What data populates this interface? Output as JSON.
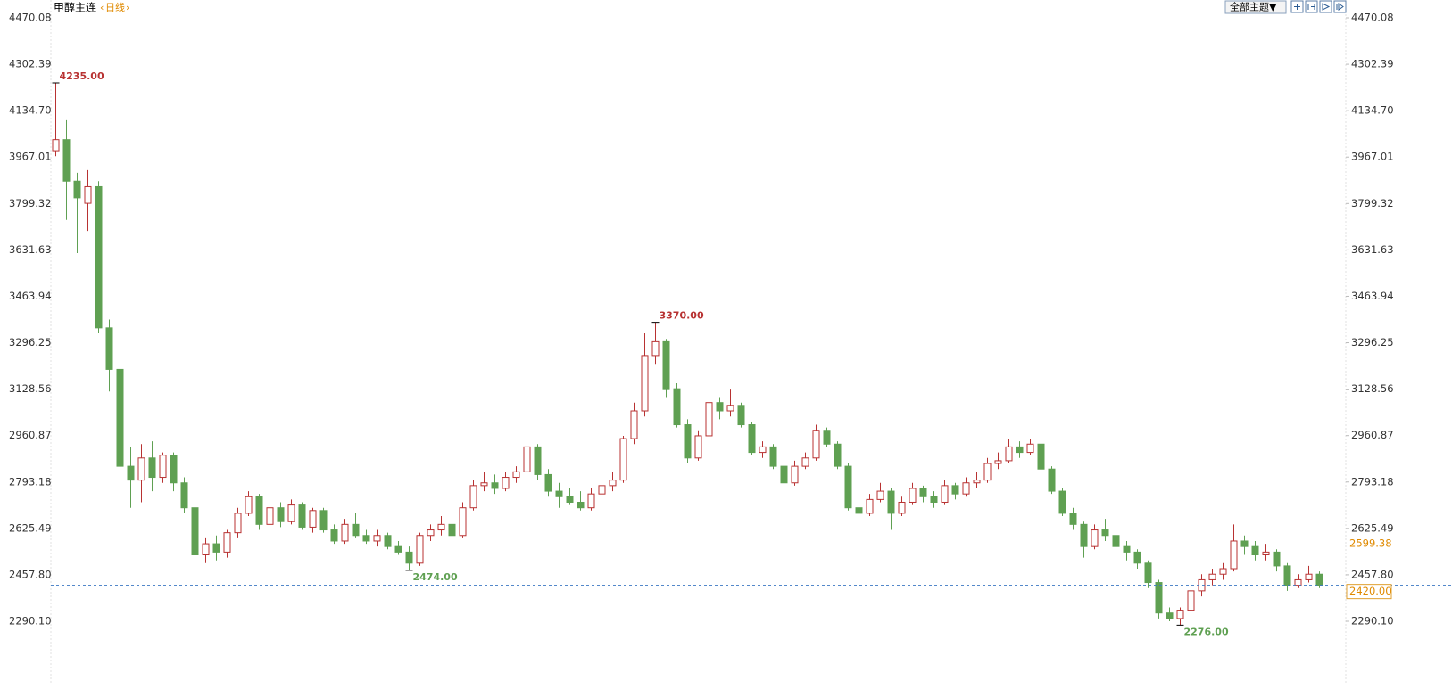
{
  "chart_data": {
    "type": "candlestick",
    "title": "甲醇主连",
    "period": "日线",
    "theme_button": "全部主题▼",
    "up_color": "#b83232",
    "down_color": "#5fa052",
    "ylim": [
      2150,
      4470.08
    ],
    "yticks": [
      4470.08,
      4302.39,
      {
        "value": 4134.7,
        "label": "4134.70"
      },
      3967.01,
      3799.32,
      3631.63,
      3463.94,
      3296.25,
      3128.56,
      2960.87,
      2793.18,
      2625.49,
      {
        "value": 2457.8,
        "label": "2457.80"
      },
      {
        "value": 2290.1,
        "label": "2290.10"
      }
    ],
    "open": [
      3990,
      4030,
      3880,
      3800,
      3860,
      3350,
      3200,
      2850,
      2800,
      2880,
      2810,
      2890,
      2790,
      2700,
      2530,
      2570,
      2540,
      2610,
      2680,
      2740,
      2640,
      2700,
      2650,
      2710,
      2630,
      2690,
      2620,
      2580,
      2640,
      2600,
      2580,
      2600,
      2560,
      2540,
      2500,
      2600,
      2620,
      2640,
      2600,
      2700,
      2780,
      2790,
      2770,
      2810,
      2830,
      2920,
      2820,
      2760,
      2740,
      2720,
      2700,
      2750,
      2780,
      2800,
      2950,
      3050,
      3250,
      3300,
      3130,
      3000,
      2880,
      2960,
      3080,
      3050,
      3070,
      3000,
      2900,
      2920,
      2850,
      2790,
      2850,
      2880,
      2980,
      2930,
      2850,
      2700,
      2680,
      2730,
      2760,
      2680,
      2720,
      2770,
      2740,
      2720,
      2780,
      2750,
      2790,
      2800,
      2860,
      2870,
      2920,
      2900,
      2930,
      2840,
      2760,
      2680,
      2640,
      2560,
      2620,
      2600,
      2560,
      2540,
      2500,
      2430,
      2320,
      2300,
      2330,
      2400,
      2440,
      2460,
      2480,
      2580,
      2560,
      2530,
      2540,
      2490,
      2420,
      2440,
      2460
    ],
    "high": [
      4235,
      4100,
      3910,
      3920,
      3880,
      3380,
      3230,
      2920,
      2930,
      2940,
      2900,
      2900,
      2810,
      2720,
      2590,
      2600,
      2620,
      2700,
      2760,
      2750,
      2720,
      2720,
      2730,
      2720,
      2700,
      2700,
      2640,
      2660,
      2680,
      2620,
      2620,
      2610,
      2580,
      2560,
      2610,
      2640,
      2670,
      2650,
      2720,
      2800,
      2830,
      2820,
      2830,
      2850,
      2960,
      2930,
      2840,
      2790,
      2770,
      2760,
      2770,
      2800,
      2830,
      2960,
      3080,
      3330,
      3370,
      3310,
      3150,
      3020,
      2980,
      3110,
      3100,
      3130,
      3080,
      3010,
      2940,
      2930,
      2860,
      2870,
      2900,
      3000,
      2990,
      2940,
      2860,
      2710,
      2750,
      2790,
      2770,
      2740,
      2790,
      2780,
      2760,
      2800,
      2790,
      2810,
      2830,
      2880,
      2900,
      2950,
      2940,
      2950,
      2940,
      2850,
      2770,
      2700,
      2650,
      2640,
      2660,
      2610,
      2580,
      2550,
      2510,
      2440,
      2340,
      2340,
      2420,
      2460,
      2480,
      2500,
      2640,
      2600,
      2580,
      2570,
      2550,
      2500,
      2460,
      2490,
      2470
    ],
    "low": [
      3970,
      3740,
      3620,
      3700,
      3330,
      3120,
      2650,
      2700,
      2720,
      2760,
      2790,
      2760,
      2680,
      2510,
      2500,
      2510,
      2520,
      2590,
      2670,
      2620,
      2620,
      2630,
      2640,
      2620,
      2610,
      2610,
      2570,
      2570,
      2590,
      2570,
      2560,
      2550,
      2530,
      2474,
      2490,
      2580,
      2600,
      2590,
      2590,
      2690,
      2760,
      2750,
      2760,
      2790,
      2820,
      2800,
      2740,
      2700,
      2710,
      2690,
      2690,
      2730,
      2760,
      2790,
      2930,
      3030,
      3220,
      3100,
      2990,
      2860,
      2870,
      2950,
      3020,
      3030,
      2990,
      2890,
      2880,
      2840,
      2770,
      2780,
      2840,
      2870,
      2920,
      2840,
      2690,
      2660,
      2670,
      2720,
      2620,
      2670,
      2710,
      2720,
      2700,
      2710,
      2730,
      2740,
      2770,
      2790,
      2840,
      2860,
      2880,
      2890,
      2830,
      2750,
      2670,
      2620,
      2520,
      2550,
      2580,
      2540,
      2510,
      2480,
      2410,
      2300,
      2290,
      2276,
      2310,
      2380,
      2420,
      2440,
      2470,
      2530,
      2510,
      2510,
      2470,
      2400,
      2410,
      2430,
      2410
    ],
    "close": [
      4030,
      3880,
      3820,
      3860,
      3350,
      3200,
      2850,
      2800,
      2880,
      2810,
      2890,
      2790,
      2700,
      2530,
      2570,
      2540,
      2610,
      2680,
      2740,
      2640,
      2700,
      2650,
      2710,
      2630,
      2690,
      2620,
      2580,
      2640,
      2600,
      2580,
      2600,
      2560,
      2540,
      2500,
      2600,
      2620,
      2640,
      2600,
      2700,
      2780,
      2790,
      2770,
      2810,
      2830,
      2920,
      2820,
      2760,
      2740,
      2720,
      2700,
      2750,
      2780,
      2800,
      2950,
      3050,
      3250,
      3300,
      3130,
      3000,
      2880,
      2960,
      3080,
      3050,
      3070,
      3000,
      2900,
      2920,
      2850,
      2790,
      2850,
      2880,
      2980,
      2930,
      2850,
      2700,
      2680,
      2730,
      2760,
      2680,
      2720,
      2770,
      2740,
      2720,
      2780,
      2750,
      2790,
      2800,
      2860,
      2870,
      2920,
      2900,
      2930,
      2840,
      2760,
      2680,
      2640,
      2560,
      2620,
      2600,
      2560,
      2540,
      2500,
      2430,
      2320,
      2300,
      2330,
      2400,
      2440,
      2460,
      2480,
      2580,
      2560,
      2530,
      2540,
      2490,
      2420,
      2440,
      2460,
      2420
    ],
    "annotations": [
      {
        "value": 4235,
        "label": "4235.00"
      },
      {
        "value": 3370,
        "label": "3370.00"
      },
      {
        "value": 2474,
        "label": "2474.00"
      },
      {
        "value": 2276,
        "label": "2276.00"
      }
    ],
    "last_price": {
      "value": 2420,
      "label": "2420.00"
    },
    "marker_value": 2599.38
  }
}
